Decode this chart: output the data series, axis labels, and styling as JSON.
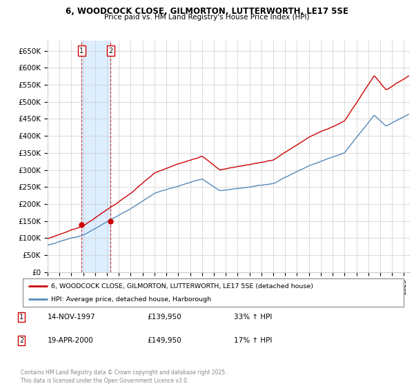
{
  "title_line1": "6, WOODCOCK CLOSE, GILMORTON, LUTTERWORTH, LE17 5SE",
  "title_line2": "Price paid vs. HM Land Registry's House Price Index (HPI)",
  "ylim": [
    0,
    680000
  ],
  "yticks": [
    0,
    50000,
    100000,
    150000,
    200000,
    250000,
    300000,
    350000,
    400000,
    450000,
    500000,
    550000,
    600000,
    650000
  ],
  "ytick_labels": [
    "£0",
    "£50K",
    "£100K",
    "£150K",
    "£200K",
    "£250K",
    "£300K",
    "£350K",
    "£400K",
    "£450K",
    "£500K",
    "£550K",
    "£600K",
    "£650K"
  ],
  "price_color": "#cc0000",
  "hpi_color": "#5588bb",
  "sale1_date": 1997.87,
  "sale1_price": 139950,
  "sale2_date": 2000.3,
  "sale2_price": 149950,
  "shade_color": "#ddeeff",
  "background_color": "#ffffff",
  "grid_color": "#cccccc",
  "legend_label_price": "6, WOODCOCK CLOSE, GILMORTON, LUTTERWORTH, LE17 5SE (detached house)",
  "legend_label_hpi": "HPI: Average price, detached house, Harborough",
  "table_rows": [
    [
      "1",
      "14-NOV-1997",
      "£139,950",
      "33% ↑ HPI"
    ],
    [
      "2",
      "19-APR-2000",
      "£149,950",
      "17% ↑ HPI"
    ]
  ],
  "footnote": "Contains HM Land Registry data © Crown copyright and database right 2025.\nThis data is licensed under the Open Government Licence v3.0.",
  "xmin": 1995.0,
  "xmax": 2025.5
}
